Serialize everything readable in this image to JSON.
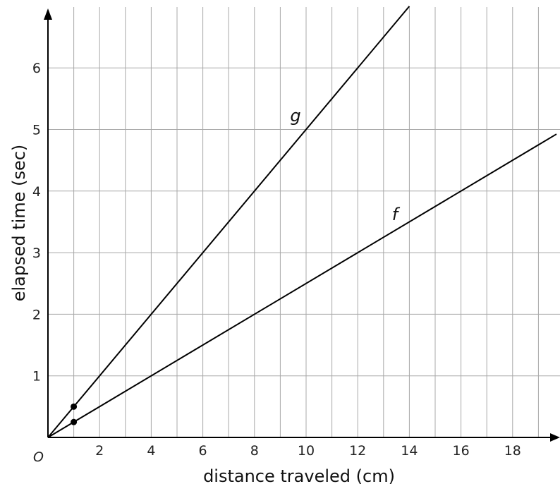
{
  "chart_data": {
    "type": "line",
    "xlabel": "distance traveled (cm)",
    "ylabel": "elapsed time (sec)",
    "xlim": [
      0,
      19.7
    ],
    "ylim": [
      0,
      6.95
    ],
    "x_ticks": [
      2,
      4,
      6,
      8,
      10,
      12,
      14,
      16,
      18
    ],
    "y_ticks": [
      1,
      2,
      3,
      4,
      5,
      6
    ],
    "origin_label": "O",
    "grid": {
      "x_step": 1,
      "y_step": 1
    },
    "series": [
      {
        "name": "g",
        "x": [
          0,
          14
        ],
        "y": [
          0,
          7
        ]
      },
      {
        "name": "f",
        "x": [
          0,
          19.7
        ],
        "y": [
          0,
          4.925
        ]
      }
    ],
    "points": [
      {
        "x": 1,
        "y": 0.5
      },
      {
        "x": 1,
        "y": 0.25
      }
    ]
  }
}
